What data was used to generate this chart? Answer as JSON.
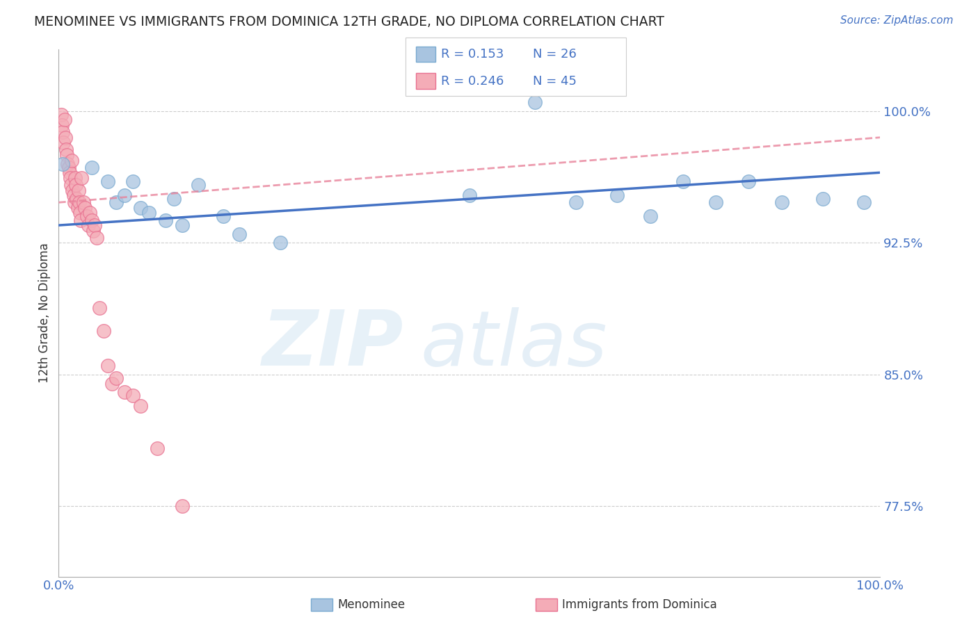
{
  "title": "MENOMINEE VS IMMIGRANTS FROM DOMINICA 12TH GRADE, NO DIPLOMA CORRELATION CHART",
  "source_text": "Source: ZipAtlas.com",
  "ylabel": "12th Grade, No Diploma",
  "legend_blue_r": "0.153",
  "legend_blue_n": "26",
  "legend_pink_r": "0.246",
  "legend_pink_n": "45",
  "xlim": [
    0.0,
    1.0
  ],
  "ylim": [
    0.735,
    1.035
  ],
  "yticks": [
    0.775,
    0.85,
    0.925,
    1.0
  ],
  "ytick_labels": [
    "77.5%",
    "85.0%",
    "92.5%",
    "100.0%"
  ],
  "xtick_labels": [
    "0.0%",
    "100.0%"
  ],
  "blue_scatter_x": [
    0.005,
    0.04,
    0.06,
    0.07,
    0.08,
    0.09,
    0.1,
    0.11,
    0.13,
    0.14,
    0.15,
    0.17,
    0.2,
    0.22,
    0.27,
    0.5,
    0.58,
    0.63,
    0.68,
    0.72,
    0.76,
    0.8,
    0.84,
    0.88,
    0.93,
    0.98
  ],
  "blue_scatter_y": [
    0.97,
    0.968,
    0.96,
    0.948,
    0.952,
    0.96,
    0.945,
    0.942,
    0.938,
    0.95,
    0.935,
    0.958,
    0.94,
    0.93,
    0.925,
    0.952,
    1.005,
    0.948,
    0.952,
    0.94,
    0.96,
    0.948,
    0.96,
    0.948,
    0.95,
    0.948
  ],
  "pink_scatter_x": [
    0.003,
    0.004,
    0.005,
    0.006,
    0.007,
    0.008,
    0.009,
    0.01,
    0.011,
    0.012,
    0.013,
    0.014,
    0.015,
    0.016,
    0.017,
    0.018,
    0.019,
    0.02,
    0.021,
    0.022,
    0.023,
    0.024,
    0.025,
    0.026,
    0.027,
    0.028,
    0.03,
    0.032,
    0.034,
    0.036,
    0.038,
    0.04,
    0.042,
    0.044,
    0.046,
    0.05,
    0.055,
    0.06,
    0.065,
    0.07,
    0.08,
    0.09,
    0.1,
    0.12,
    0.15
  ],
  "pink_scatter_y": [
    0.998,
    0.992,
    0.988,
    0.982,
    0.995,
    0.985,
    0.978,
    0.975,
    0.97,
    0.968,
    0.965,
    0.962,
    0.958,
    0.972,
    0.955,
    0.952,
    0.948,
    0.962,
    0.958,
    0.95,
    0.945,
    0.955,
    0.948,
    0.942,
    0.938,
    0.962,
    0.948,
    0.945,
    0.94,
    0.935,
    0.942,
    0.938,
    0.932,
    0.935,
    0.928,
    0.888,
    0.875,
    0.855,
    0.845,
    0.848,
    0.84,
    0.838,
    0.832,
    0.808,
    0.775
  ],
  "blue_line_color": "#4472C4",
  "pink_line_color": "#E8829A",
  "blue_dot_facecolor": "#A8C4E0",
  "blue_dot_edgecolor": "#7AAAD0",
  "pink_dot_facecolor": "#F4ACB7",
  "pink_dot_edgecolor": "#E87090",
  "background_color": "#ffffff",
  "grid_color": "#cccccc",
  "blue_trendline_start_y": 0.935,
  "blue_trendline_end_y": 0.965,
  "pink_trendline_start_y": 0.948,
  "pink_trendline_end_y": 0.985
}
